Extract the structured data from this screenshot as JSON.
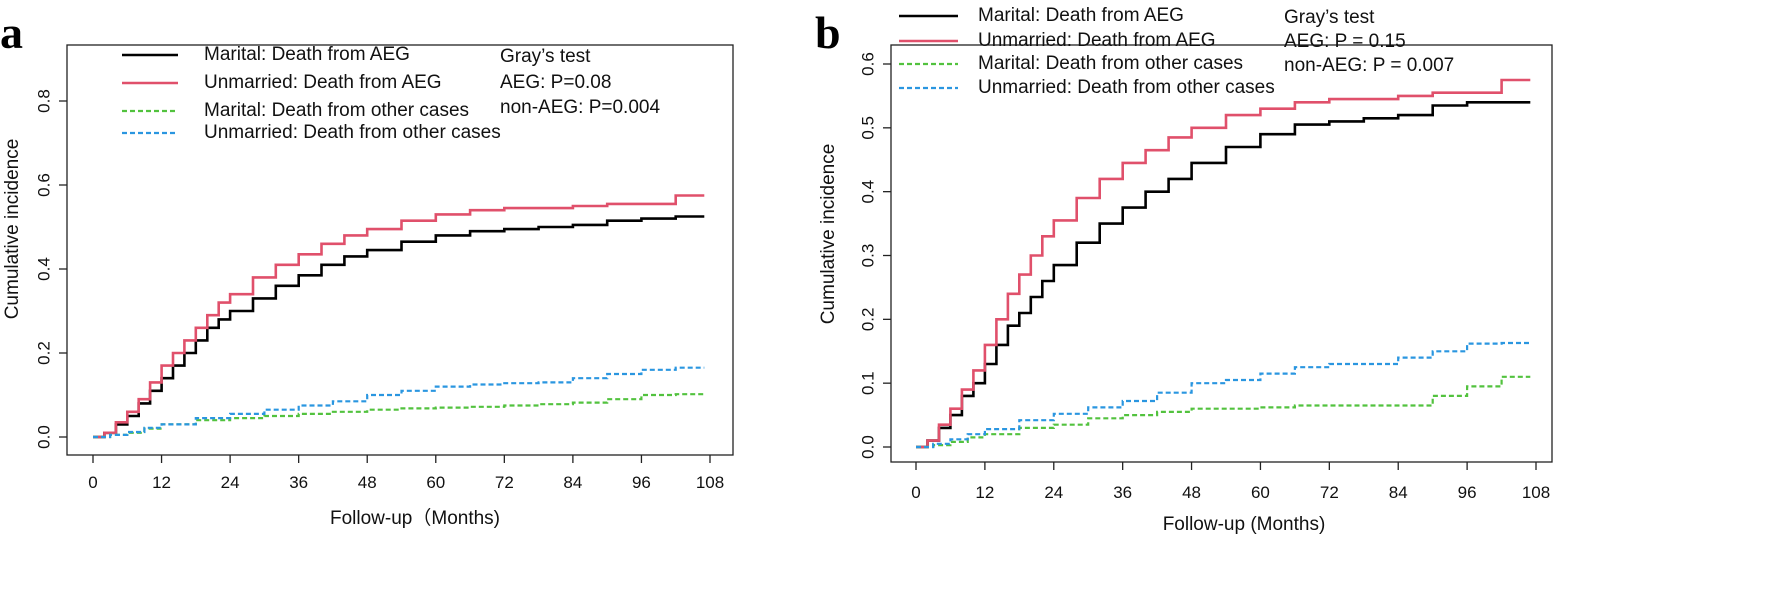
{
  "colors": {
    "marital_aeg": "#000000",
    "unmarried_aeg": "#E0506B",
    "marital_other": "#52C23E",
    "unmarried_other": "#2A96E0"
  },
  "chart_data": [
    {
      "type": "line",
      "panel_label": "a",
      "xlabel": "Follow-up（Months)",
      "ylabel": "Cumulative incidence",
      "xlim": [
        0,
        108
      ],
      "ylim": [
        0,
        0.9
      ],
      "xticks": [
        0,
        12,
        24,
        36,
        48,
        60,
        72,
        84,
        96,
        108
      ],
      "yticks": [
        0.0,
        0.2,
        0.4,
        0.6,
        0.8
      ],
      "ytick_labels": [
        "0.0",
        "0.2",
        "0.4",
        "0.6",
        "0.8"
      ],
      "legend_position": "top-left",
      "legend": [
        "Marital: Death from AEG",
        "Unmarried: Death from AEG",
        "Marital: Death from other cases",
        "Unmarried: Death from other cases"
      ],
      "annotation": [
        "Gray’s test",
        "AEG: P=0.08",
        "non-AEG: P=0.004"
      ],
      "series": [
        {
          "name": "Marital: Death from AEG",
          "color_key": "marital_aeg",
          "style": "solid",
          "x": [
            0,
            2,
            4,
            6,
            8,
            10,
            12,
            14,
            16,
            18,
            20,
            22,
            24,
            28,
            32,
            36,
            40,
            44,
            48,
            54,
            60,
            66,
            72,
            78,
            84,
            90,
            96,
            102,
            107
          ],
          "y": [
            0,
            0.01,
            0.03,
            0.05,
            0.08,
            0.11,
            0.14,
            0.17,
            0.2,
            0.23,
            0.26,
            0.28,
            0.3,
            0.33,
            0.36,
            0.385,
            0.41,
            0.43,
            0.445,
            0.465,
            0.48,
            0.49,
            0.495,
            0.5,
            0.505,
            0.515,
            0.52,
            0.525,
            0.525
          ]
        },
        {
          "name": "Unmarried: Death from AEG",
          "color_key": "unmarried_aeg",
          "style": "solid",
          "x": [
            0,
            2,
            4,
            6,
            8,
            10,
            12,
            14,
            16,
            18,
            20,
            22,
            24,
            28,
            32,
            36,
            40,
            44,
            48,
            54,
            60,
            66,
            72,
            78,
            84,
            90,
            96,
            102,
            107
          ],
          "y": [
            0,
            0.01,
            0.035,
            0.06,
            0.09,
            0.13,
            0.17,
            0.2,
            0.23,
            0.26,
            0.29,
            0.32,
            0.34,
            0.38,
            0.41,
            0.435,
            0.46,
            0.48,
            0.495,
            0.515,
            0.53,
            0.54,
            0.545,
            0.545,
            0.55,
            0.555,
            0.555,
            0.575,
            0.575
          ]
        },
        {
          "name": "Marital: Death from other cases",
          "color_key": "marital_other",
          "style": "dashed",
          "x": [
            0,
            3,
            6,
            9,
            12,
            18,
            24,
            30,
            36,
            42,
            48,
            54,
            60,
            66,
            72,
            78,
            84,
            90,
            96,
            102,
            107
          ],
          "y": [
            0,
            0.005,
            0.01,
            0.02,
            0.03,
            0.04,
            0.045,
            0.05,
            0.055,
            0.06,
            0.065,
            0.068,
            0.07,
            0.072,
            0.075,
            0.078,
            0.082,
            0.09,
            0.1,
            0.102,
            0.102
          ]
        },
        {
          "name": "Unmarried: Death from other cases",
          "color_key": "unmarried_other",
          "style": "dashed",
          "x": [
            0,
            3,
            6,
            9,
            12,
            18,
            24,
            30,
            36,
            42,
            48,
            54,
            60,
            66,
            72,
            78,
            84,
            90,
            96,
            102,
            107
          ],
          "y": [
            0,
            0.005,
            0.012,
            0.022,
            0.03,
            0.045,
            0.055,
            0.065,
            0.075,
            0.085,
            0.1,
            0.11,
            0.12,
            0.125,
            0.128,
            0.13,
            0.14,
            0.15,
            0.16,
            0.165,
            0.165
          ]
        }
      ]
    },
    {
      "type": "line",
      "panel_label": "b",
      "xlabel": "Follow-up (Months)",
      "ylabel": "Cumulative incidence",
      "xlim": [
        0,
        108
      ],
      "ylim": [
        0,
        0.6
      ],
      "xticks": [
        0,
        12,
        24,
        36,
        48,
        60,
        72,
        84,
        96,
        108
      ],
      "yticks": [
        0.0,
        0.1,
        0.2,
        0.3,
        0.4,
        0.5,
        0.6
      ],
      "ytick_labels": [
        "0.0",
        "0.1",
        "0.2",
        "0.3",
        "0.4",
        "0.5",
        "0.6"
      ],
      "legend_position": "top-left",
      "legend": [
        "Marital: Death from AEG",
        "Unmarried: Death from AEG",
        "Marital: Death from other cases",
        "Unmarried: Death from other cases"
      ],
      "annotation": [
        "Gray’s test",
        "AEG: P = 0.15",
        "non-AEG: P = 0.007"
      ],
      "series": [
        {
          "name": "Marital: Death from AEG",
          "color_key": "marital_aeg",
          "style": "solid",
          "x": [
            0,
            2,
            4,
            6,
            8,
            10,
            12,
            14,
            16,
            18,
            20,
            22,
            24,
            28,
            32,
            36,
            40,
            44,
            48,
            54,
            60,
            66,
            72,
            78,
            84,
            90,
            96,
            102,
            107
          ],
          "y": [
            0,
            0.01,
            0.03,
            0.05,
            0.08,
            0.1,
            0.13,
            0.16,
            0.19,
            0.21,
            0.235,
            0.26,
            0.285,
            0.32,
            0.35,
            0.375,
            0.4,
            0.42,
            0.445,
            0.47,
            0.49,
            0.505,
            0.51,
            0.515,
            0.52,
            0.535,
            0.54,
            0.54,
            0.54
          ]
        },
        {
          "name": "Unmarried: Death from AEG",
          "color_key": "unmarried_aeg",
          "style": "solid",
          "x": [
            0,
            2,
            4,
            6,
            8,
            10,
            12,
            14,
            16,
            18,
            20,
            22,
            24,
            28,
            32,
            36,
            40,
            44,
            48,
            54,
            60,
            66,
            72,
            78,
            84,
            90,
            96,
            102,
            107
          ],
          "y": [
            0,
            0.01,
            0.035,
            0.06,
            0.09,
            0.12,
            0.16,
            0.2,
            0.24,
            0.27,
            0.3,
            0.33,
            0.355,
            0.39,
            0.42,
            0.445,
            0.465,
            0.485,
            0.5,
            0.52,
            0.53,
            0.54,
            0.545,
            0.545,
            0.55,
            0.555,
            0.555,
            0.575,
            0.575
          ]
        },
        {
          "name": "Marital: Death from other cases",
          "color_key": "marital_other",
          "style": "dashed",
          "x": [
            0,
            3,
            6,
            9,
            12,
            18,
            24,
            30,
            36,
            42,
            48,
            54,
            60,
            66,
            72,
            78,
            84,
            90,
            96,
            102,
            107
          ],
          "y": [
            0,
            0.003,
            0.008,
            0.015,
            0.02,
            0.03,
            0.035,
            0.045,
            0.05,
            0.055,
            0.06,
            0.06,
            0.062,
            0.065,
            0.065,
            0.065,
            0.065,
            0.08,
            0.095,
            0.11,
            0.11
          ]
        },
        {
          "name": "Unmarried: Death from other cases",
          "color_key": "unmarried_other",
          "style": "dashed",
          "x": [
            0,
            3,
            6,
            9,
            12,
            18,
            24,
            30,
            36,
            42,
            48,
            54,
            60,
            66,
            72,
            78,
            84,
            90,
            96,
            102,
            107
          ],
          "y": [
            0,
            0.005,
            0.012,
            0.02,
            0.028,
            0.042,
            0.052,
            0.062,
            0.072,
            0.085,
            0.1,
            0.105,
            0.115,
            0.125,
            0.13,
            0.13,
            0.14,
            0.15,
            0.162,
            0.163,
            0.163
          ]
        }
      ]
    }
  ]
}
